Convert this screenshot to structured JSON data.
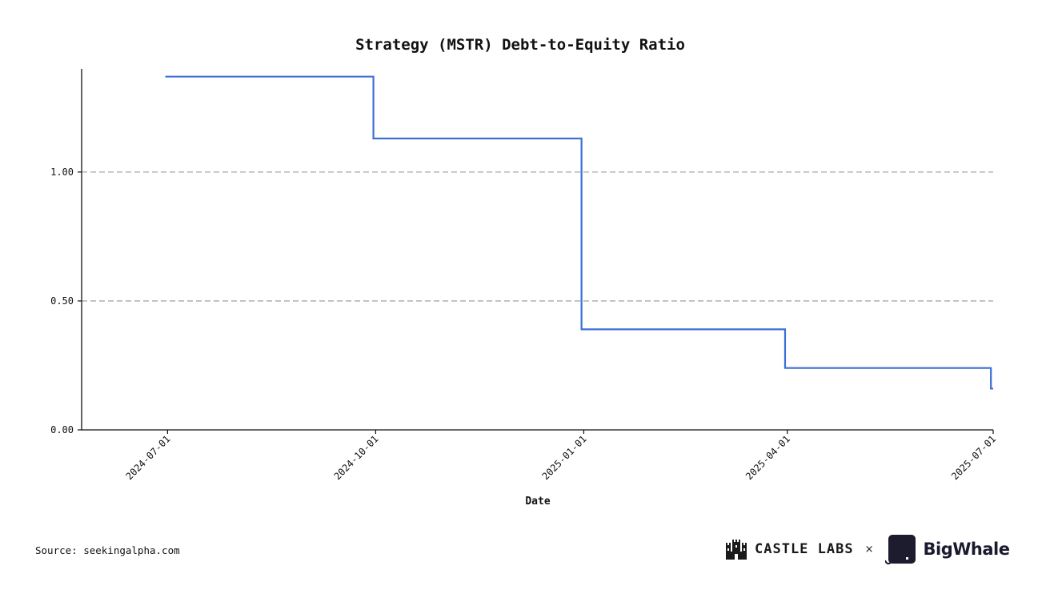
{
  "chart_data": {
    "type": "line",
    "style": "step",
    "title": "Strategy (MSTR) Debt-to-Equity Ratio",
    "xlabel": "Date",
    "ylabel": "",
    "x_tick_labels": [
      "2024-07-01",
      "2024-10-01",
      "2025-01-01",
      "2025-04-01",
      "2025-07-01"
    ],
    "y_tick_labels": [
      "0.00",
      "0.50",
      "1.00"
    ],
    "y_ticks": [
      0,
      0.5,
      1.0
    ],
    "ylim": [
      0,
      1.4
    ],
    "xlim": [
      "2024-05-24",
      "2025-07-01"
    ],
    "grid": "horizontal dashed",
    "series": [
      {
        "name": "Debt-to-Equity",
        "color": "#3c6fd8",
        "x": [
          "2024-06-30",
          "2024-09-30",
          "2024-12-31",
          "2025-03-31",
          "2025-06-30"
        ],
        "values": [
          1.37,
          1.13,
          0.39,
          0.24,
          0.16
        ]
      }
    ]
  },
  "footer": {
    "source": "Source: seekingalpha.com",
    "brand_left": "CASTLE LABS",
    "separator": "×",
    "brand_right": "BigWhale"
  }
}
